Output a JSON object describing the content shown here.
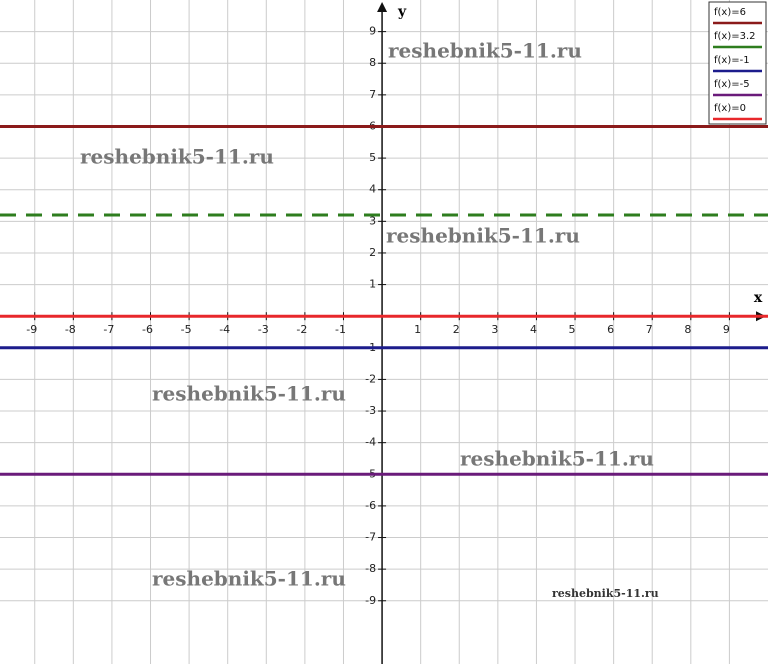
{
  "chart_data": {
    "type": "line",
    "x_label": "x",
    "y_label": "y",
    "xlim": [
      -9.9,
      10
    ],
    "ylim": [
      -11,
      10
    ],
    "xticks": [
      -9,
      -8,
      -7,
      -6,
      -5,
      -4,
      -3,
      -2,
      -1,
      1,
      2,
      3,
      4,
      5,
      6,
      7,
      8,
      9
    ],
    "yticks": [
      -9,
      -8,
      -7,
      -6,
      -5,
      -4,
      -3,
      -2,
      -1,
      1,
      2,
      3,
      4,
      5,
      6,
      7,
      8,
      9
    ],
    "grid": true,
    "legend": "top-right",
    "x": [
      -9.9,
      10
    ],
    "series": [
      {
        "name": "f(x)=6",
        "color": "#8b1a1a",
        "values": [
          6,
          6
        ]
      },
      {
        "name": "f(x)=3.2",
        "color": "#2e7d1e",
        "dashed": true,
        "values": [
          3.2,
          3.2
        ]
      },
      {
        "name": "f(x)=-1",
        "color": "#1c1c8c",
        "values": [
          -1,
          -1
        ]
      },
      {
        "name": "f(x)=-5",
        "color": "#6a1b7a",
        "values": [
          -5,
          -5
        ]
      },
      {
        "name": "f(x)=0",
        "color": "#e8282b",
        "values": [
          0,
          0
        ]
      }
    ],
    "annotations": [
      "reshebnik5-11.ru",
      "reshebnik5-11.ru",
      "reshebnik5-11.ru",
      "reshebnik5-11.ru",
      "reshebnik5-11.ru",
      "reshebnik5-11.ru",
      "reshebnik5-11.ru"
    ]
  }
}
